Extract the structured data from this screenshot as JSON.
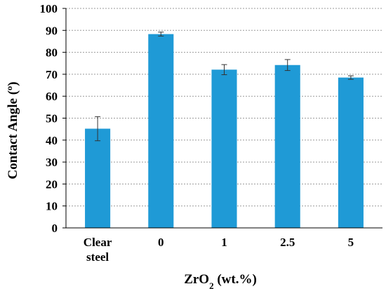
{
  "chart_data": {
    "type": "bar",
    "categories": [
      [
        "Clear",
        "steel"
      ],
      [
        "0"
      ],
      [
        "1"
      ],
      [
        "2.5"
      ],
      [
        "5"
      ]
    ],
    "series": [
      {
        "values": [
          45.2,
          88.3,
          72.1,
          74.2,
          68.5
        ],
        "errors": [
          5.5,
          0.9,
          2.3,
          2.5,
          0.8
        ]
      }
    ],
    "xlabel": {
      "main": "ZrO",
      "sub": "2",
      "rest": " (wt.%)"
    },
    "ylabel": "Contact Angle (º)",
    "ylim": [
      0,
      100
    ],
    "yticks": [
      "0",
      "10",
      "20",
      "30",
      "40",
      "50",
      "60",
      "70",
      "80",
      "90",
      "100"
    ],
    "grid": true,
    "bar_color": "#1f9ad6",
    "error_color": "#333333"
  }
}
